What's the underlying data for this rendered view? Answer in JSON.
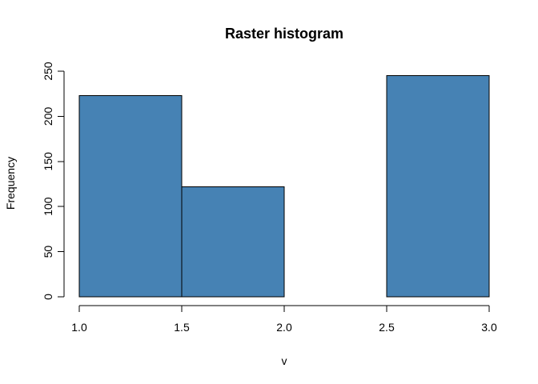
{
  "chart_data": {
    "type": "bar",
    "title": "Raster histogram",
    "xlabel": "v",
    "ylabel": "Frequency",
    "bins": [
      {
        "x0": 1.0,
        "x1": 1.5,
        "value": 223
      },
      {
        "x0": 1.5,
        "x1": 2.0,
        "value": 122
      },
      {
        "x0": 2.0,
        "x1": 2.5,
        "value": 0
      },
      {
        "x0": 2.5,
        "x1": 3.0,
        "value": 245
      }
    ],
    "xlim": [
      1.0,
      3.0
    ],
    "ylim": [
      0,
      250
    ],
    "x_ticks": [
      1.0,
      1.5,
      2.0,
      2.5,
      3.0
    ],
    "x_tick_labels": [
      "1.0",
      "1.5",
      "2.0",
      "2.5",
      "3.0"
    ],
    "y_ticks": [
      0,
      50,
      100,
      150,
      200,
      250
    ],
    "y_tick_labels": [
      "0",
      "50",
      "100",
      "150",
      "200",
      "250"
    ],
    "grid": false,
    "legend": "none",
    "colors": {
      "bar_fill": "#4682B4",
      "bar_stroke": "#000000",
      "background": "#FFFFFF"
    }
  }
}
